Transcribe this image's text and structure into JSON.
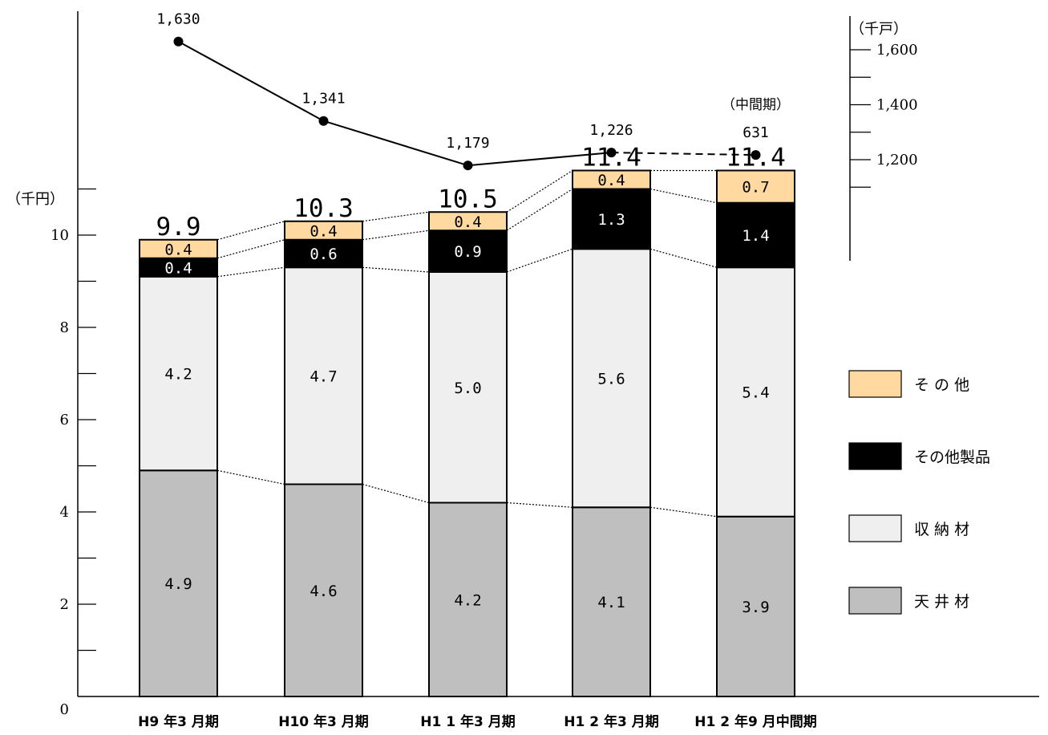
{
  "chart_data": {
    "type": "bar",
    "stacked": true,
    "categories": [
      "H9 年3 月期",
      "H10 年3 月期",
      "H1 1 年3 月期",
      "H1 2 年3 月期",
      "H1 2 年9 月中間期"
    ],
    "series": [
      {
        "name": "天 井 材",
        "values": [
          4.9,
          4.6,
          4.2,
          4.1,
          3.9
        ],
        "color": "#bfbfbf"
      },
      {
        "name": "収 納 材",
        "values": [
          4.2,
          4.7,
          5.0,
          5.6,
          5.4
        ],
        "color": "#efefef"
      },
      {
        "name": "その他製品",
        "values": [
          0.4,
          0.6,
          0.9,
          1.3,
          1.4
        ],
        "color": "#000000"
      },
      {
        "name": "そ の 他",
        "values": [
          0.4,
          0.4,
          0.4,
          0.4,
          0.7
        ],
        "color": "#ffd9a0"
      }
    ],
    "totals": [
      "9.9",
      "10.3",
      "10.5",
      "11.4",
      "11.4"
    ],
    "left_axis": {
      "unit": "（千円）",
      "ylim": [
        0,
        13
      ],
      "ticks": [
        "0",
        "2",
        "4",
        "6",
        "8",
        "10"
      ]
    },
    "housing_starts": {
      "values": [
        1630,
        1341,
        1179,
        1226,
        631
      ],
      "labels": [
        "1,630",
        "1,341",
        "1,179",
        "1,226",
        "631"
      ],
      "note": "（中間期）"
    },
    "right_axis": {
      "unit": "（千戸）",
      "ticks": [
        "1,600",
        "1,400",
        "1,200"
      ]
    },
    "legend_position": "right"
  }
}
